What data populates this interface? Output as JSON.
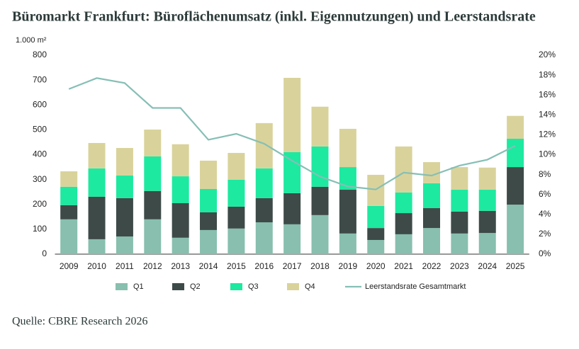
{
  "chart_data": {
    "type": "bar",
    "stacked": true,
    "title": "Büromarkt Frankfurt: Büroflächenumsatz (inkl. Eigennutzungen) und Leerstandsrate",
    "y_label": "1.000 m²",
    "source": "Quelle: CBRE Research 2026",
    "categories": [
      "2009",
      "2010",
      "2011",
      "2012",
      "2013",
      "2014",
      "2015",
      "2016",
      "2017",
      "2018",
      "2019",
      "2020",
      "2021",
      "2022",
      "2023",
      "2024",
      "2025"
    ],
    "series": [
      {
        "name": "Q1",
        "color": "#88bfae",
        "values": [
          140,
          60,
          71,
          140,
          66,
          97,
          103,
          128,
          120,
          157,
          83,
          57,
          80,
          105,
          83,
          85,
          199
        ]
      },
      {
        "name": "Q2",
        "color": "#3d4a48",
        "values": [
          57,
          171,
          154,
          114,
          139,
          71,
          88,
          97,
          125,
          114,
          176,
          48,
          85,
          80,
          88,
          89,
          151
        ]
      },
      {
        "name": "Q3",
        "color": "#1de9a0",
        "values": [
          74,
          114,
          91,
          139,
          108,
          94,
          108,
          120,
          165,
          162,
          91,
          89,
          83,
          100,
          88,
          85,
          114
        ]
      },
      {
        "name": "Q4",
        "color": "#d9d39b",
        "values": [
          62,
          102,
          111,
          108,
          129,
          114,
          108,
          182,
          299,
          160,
          154,
          125,
          185,
          85,
          91,
          89,
          92
        ]
      },
      {
        "name": "Leerstandsrate Gesamtmarkt",
        "type": "line",
        "axis": "y2",
        "color": "#86bfb5",
        "values": [
          16.6,
          17.7,
          17.2,
          14.7,
          14.7,
          11.5,
          12.1,
          11.1,
          9.4,
          7.8,
          6.8,
          6.5,
          8.2,
          7.9,
          8.9,
          9.5,
          10.9
        ]
      }
    ],
    "ylim": [
      0,
      800
    ],
    "yticks": [
      0,
      100,
      200,
      300,
      400,
      500,
      600,
      700,
      800
    ],
    "y2lim": [
      0,
      20
    ],
    "y2ticks": [
      {
        "value": 0,
        "label": "0%"
      },
      {
        "value": 2,
        "label": "2%"
      },
      {
        "value": 4,
        "label": "4%"
      },
      {
        "value": 6,
        "label": "6%"
      },
      {
        "value": 8,
        "label": "8%"
      },
      {
        "value": 10,
        "label": "10%"
      },
      {
        "value": 12,
        "label": "12%"
      },
      {
        "value": 14,
        "label": "14%"
      },
      {
        "value": 16,
        "label": "16%"
      },
      {
        "value": 18,
        "label": "18%"
      },
      {
        "value": 20,
        "label": "20%"
      }
    ],
    "legend": "bottom"
  }
}
